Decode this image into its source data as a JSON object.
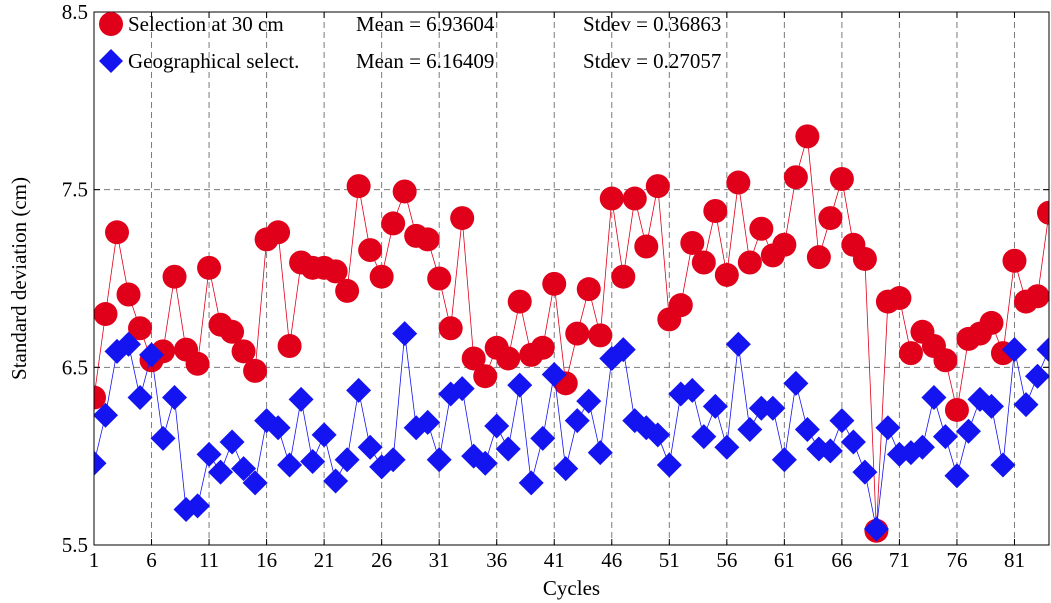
{
  "chart_data": {
    "type": "scatter",
    "xlabel": "Cycles",
    "ylabel": "Standard deviation (cm)",
    "xlim": [
      1,
      84
    ],
    "ylim": [
      5.5,
      8.5
    ],
    "x_ticks": [
      1,
      6,
      11,
      16,
      21,
      26,
      31,
      36,
      41,
      46,
      51,
      56,
      61,
      66,
      71,
      76,
      81
    ],
    "y_ticks": [
      5.5,
      6.5,
      7.5,
      8.5
    ],
    "grid": true,
    "legend_position": "top-left",
    "series": [
      {
        "name": "Selection at 30 cm",
        "color": "#e0001a",
        "marker": "circle",
        "mean_label": "Mean = 6.93604",
        "stdev_label": "Stdev = 0.36863",
        "x": [
          1,
          2,
          3,
          4,
          5,
          6,
          7,
          8,
          9,
          10,
          11,
          12,
          13,
          14,
          15,
          16,
          17,
          18,
          19,
          20,
          21,
          22,
          23,
          24,
          25,
          26,
          27,
          28,
          29,
          30,
          31,
          32,
          33,
          34,
          35,
          36,
          37,
          38,
          39,
          40,
          41,
          42,
          43,
          44,
          45,
          46,
          47,
          48,
          49,
          50,
          51,
          52,
          53,
          54,
          55,
          56,
          57,
          58,
          59,
          60,
          61,
          62,
          63,
          64,
          65,
          66,
          67,
          68,
          69,
          70,
          71,
          72,
          73,
          74,
          75,
          76,
          77,
          78,
          79,
          80,
          81,
          82,
          83,
          84
        ],
        "y": [
          6.33,
          6.8,
          7.26,
          6.91,
          6.72,
          6.54,
          6.59,
          7.01,
          6.6,
          6.52,
          7.06,
          6.74,
          6.7,
          6.59,
          6.48,
          7.22,
          7.26,
          6.62,
          7.09,
          7.06,
          7.06,
          7.04,
          6.93,
          7.52,
          7.16,
          7.01,
          7.31,
          7.49,
          7.24,
          7.22,
          7.0,
          6.72,
          7.34,
          6.55,
          6.45,
          6.61,
          6.55,
          6.87,
          6.57,
          6.61,
          6.97,
          6.41,
          6.69,
          6.94,
          6.68,
          7.45,
          7.01,
          7.45,
          7.18,
          7.52,
          6.77,
          6.85,
          7.2,
          7.09,
          7.38,
          7.02,
          7.54,
          7.09,
          7.28,
          7.13,
          7.19,
          7.57,
          7.8,
          7.12,
          7.34,
          7.56,
          7.19,
          7.11,
          5.58,
          6.87,
          6.89,
          6.58,
          6.7,
          6.62,
          6.54,
          6.26,
          6.66,
          6.69,
          6.75,
          6.58,
          7.1,
          6.87,
          6.9,
          7.37
        ]
      },
      {
        "name": "Geographical select.",
        "color": "#1414f0",
        "marker": "diamond",
        "mean_label": "Mean = 6.16409",
        "stdev_label": "Stdev = 0.27057",
        "x": [
          1,
          2,
          3,
          4,
          5,
          6,
          7,
          8,
          9,
          10,
          11,
          12,
          13,
          14,
          15,
          16,
          17,
          18,
          19,
          20,
          21,
          22,
          23,
          24,
          25,
          26,
          27,
          28,
          29,
          30,
          31,
          32,
          33,
          34,
          35,
          36,
          37,
          38,
          39,
          40,
          41,
          42,
          43,
          44,
          45,
          46,
          47,
          48,
          49,
          50,
          51,
          52,
          53,
          54,
          55,
          56,
          57,
          58,
          59,
          60,
          61,
          62,
          63,
          64,
          65,
          66,
          67,
          68,
          69,
          70,
          71,
          72,
          73,
          74,
          75,
          76,
          77,
          78,
          79,
          80,
          81,
          82,
          83,
          84
        ],
        "y": [
          5.96,
          6.23,
          6.59,
          6.63,
          6.33,
          6.57,
          6.1,
          6.33,
          5.7,
          5.72,
          6.01,
          5.91,
          6.08,
          5.93,
          5.85,
          6.2,
          6.16,
          5.95,
          6.32,
          5.97,
          6.12,
          5.86,
          5.98,
          6.37,
          6.05,
          5.94,
          5.98,
          6.69,
          6.16,
          6.19,
          5.98,
          6.35,
          6.38,
          6.0,
          5.96,
          6.17,
          6.04,
          6.4,
          5.85,
          6.1,
          6.46,
          5.93,
          6.2,
          6.31,
          6.02,
          6.55,
          6.6,
          6.2,
          6.16,
          6.12,
          5.95,
          6.35,
          6.37,
          6.11,
          6.28,
          6.05,
          6.63,
          6.15,
          6.27,
          6.27,
          5.98,
          6.41,
          6.15,
          6.04,
          6.03,
          6.2,
          6.08,
          5.91,
          5.59,
          6.16,
          6.01,
          6.02,
          6.05,
          6.33,
          6.11,
          5.89,
          6.14,
          6.32,
          6.28,
          5.95,
          6.6,
          6.29,
          6.45,
          6.6
        ]
      }
    ]
  }
}
